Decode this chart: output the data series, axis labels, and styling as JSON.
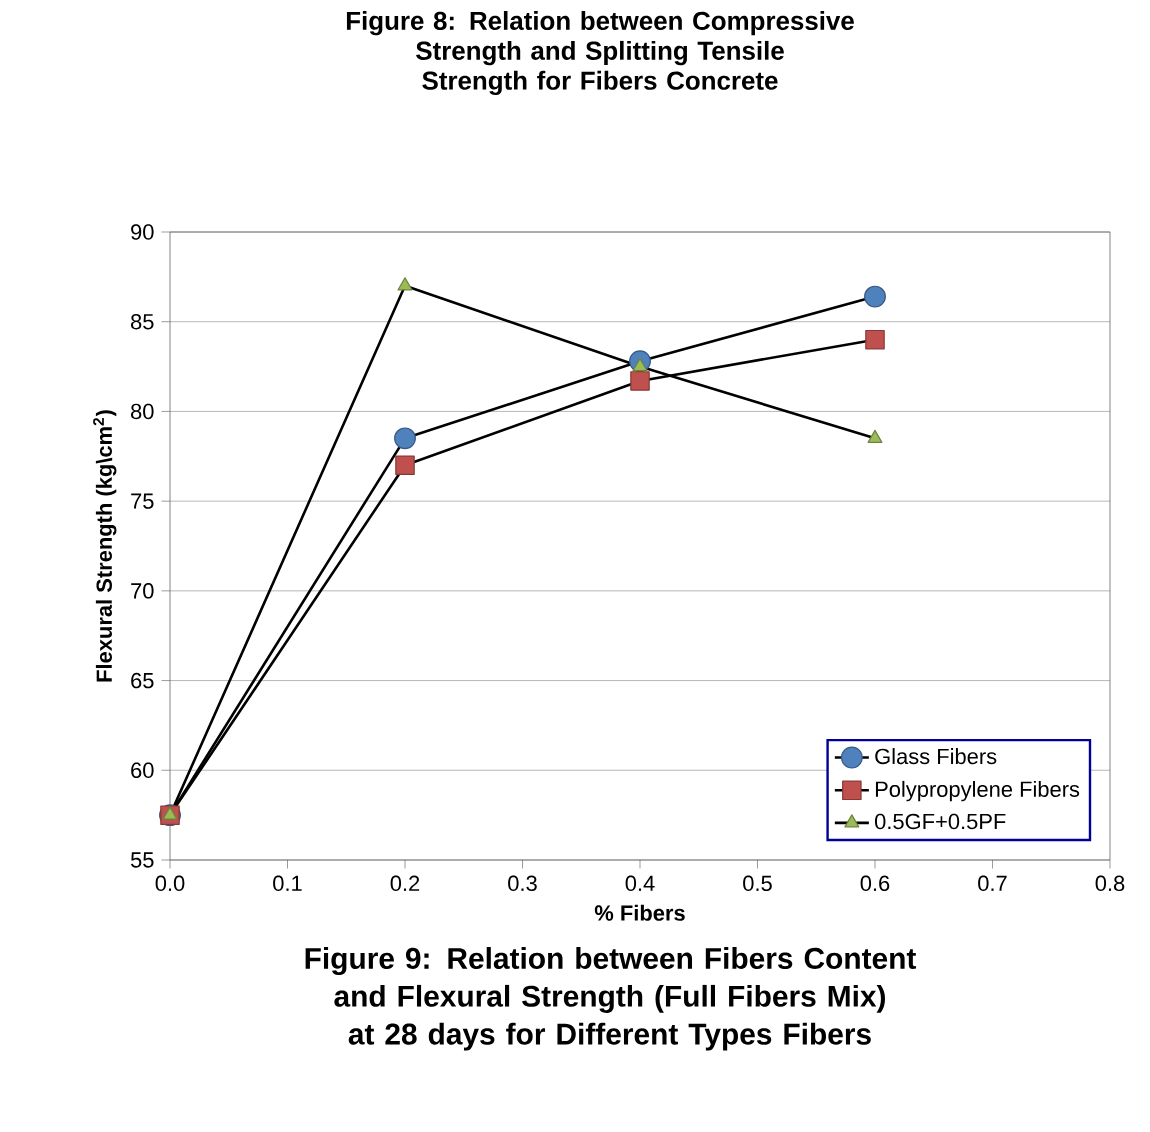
{
  "chart_data": {
    "type": "line",
    "title": "Figure 9: Relation between Fibers Content and Flexural Strength (Full Fibers Mix) at 28 days for Different Types Fibers",
    "annotations": [
      "Figure 8: Relation between Compressive Strength and Splitting Tensile Strength for Fibers Concrete"
    ],
    "xlabel": "% Fibers",
    "ylabel": "Flexural Strength (kg\\cm$^{2}$)",
    "x": [
      0,
      0.2,
      0.4,
      0.6
    ],
    "series": [
      {
        "name": "Glass Fibers",
        "color": "#4f81bd",
        "marker": "circle",
        "values": [
          57.5,
          78.5,
          82.8,
          86.4
        ]
      },
      {
        "name": "Polypropylene Fibers",
        "color": "#c0504d",
        "marker": "square",
        "values": [
          57.5,
          77,
          81.7,
          84
        ]
      },
      {
        "name": "0.5GF+0.5PF",
        "color": "#9bbb59",
        "marker": "triangle",
        "values": [
          57.5,
          87,
          82.5,
          78.5
        ]
      }
    ],
    "xlim": [
      0,
      0.8
    ],
    "xticks": [
      {
        "value": 0,
        "label": "0.0"
      },
      {
        "value": 0.1,
        "label": "0.1"
      },
      {
        "value": 0.2,
        "label": "0.2"
      },
      {
        "value": 0.3,
        "label": "0.3"
      },
      {
        "value": 0.4,
        "label": "0.4"
      },
      {
        "value": 0.5,
        "label": "0.5"
      },
      {
        "value": 0.6,
        "label": "0.6"
      },
      {
        "value": 0.7,
        "label": "0.7"
      },
      {
        "value": 0.8,
        "label": "0.8"
      }
    ],
    "ylim": [
      55,
      90
    ],
    "yticks": [
      55,
      60,
      65,
      70,
      75,
      80,
      85,
      90
    ],
    "grid": "y",
    "legend": "bottom right"
  }
}
